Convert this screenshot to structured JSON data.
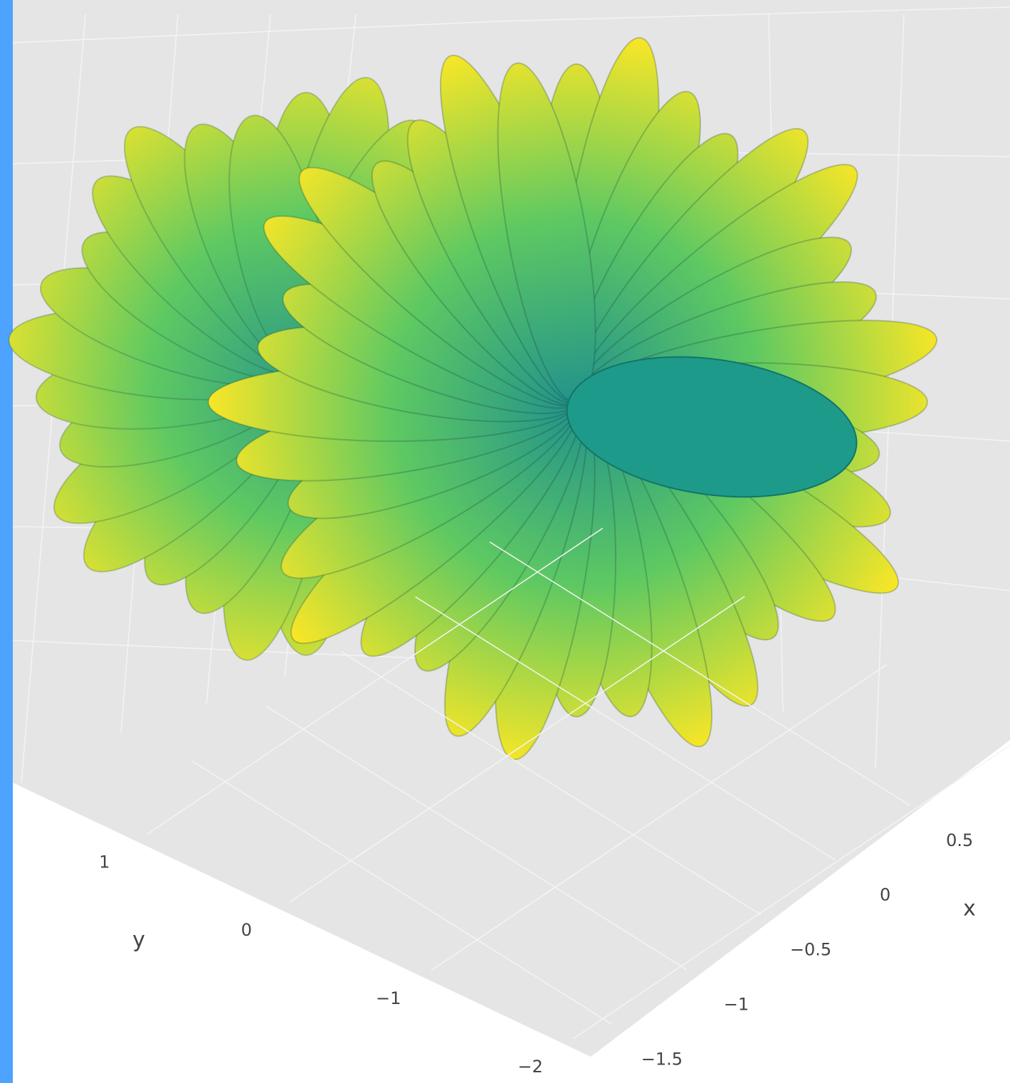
{
  "chart_data": {
    "type": "surface3d",
    "xaxis_title": "x",
    "yaxis_title": "y",
    "xlim": [
      -1.6,
      0.7
    ],
    "xticks": [
      {
        "value": -1.5,
        "label": "−1.5"
      },
      {
        "value": -1,
        "label": "−1"
      },
      {
        "value": -0.5,
        "label": "−0.5"
      },
      0,
      0.5
    ],
    "ylim": [
      -2.2,
      1.4
    ],
    "yticks": [
      {
        "value": -2,
        "label": "−2"
      },
      {
        "value": -1,
        "label": "−1"
      },
      0,
      1
    ],
    "colorscale": [
      "#440154",
      "#3b528b",
      "#21918c",
      "#5ec962",
      "#fde725"
    ],
    "grid": true
  }
}
